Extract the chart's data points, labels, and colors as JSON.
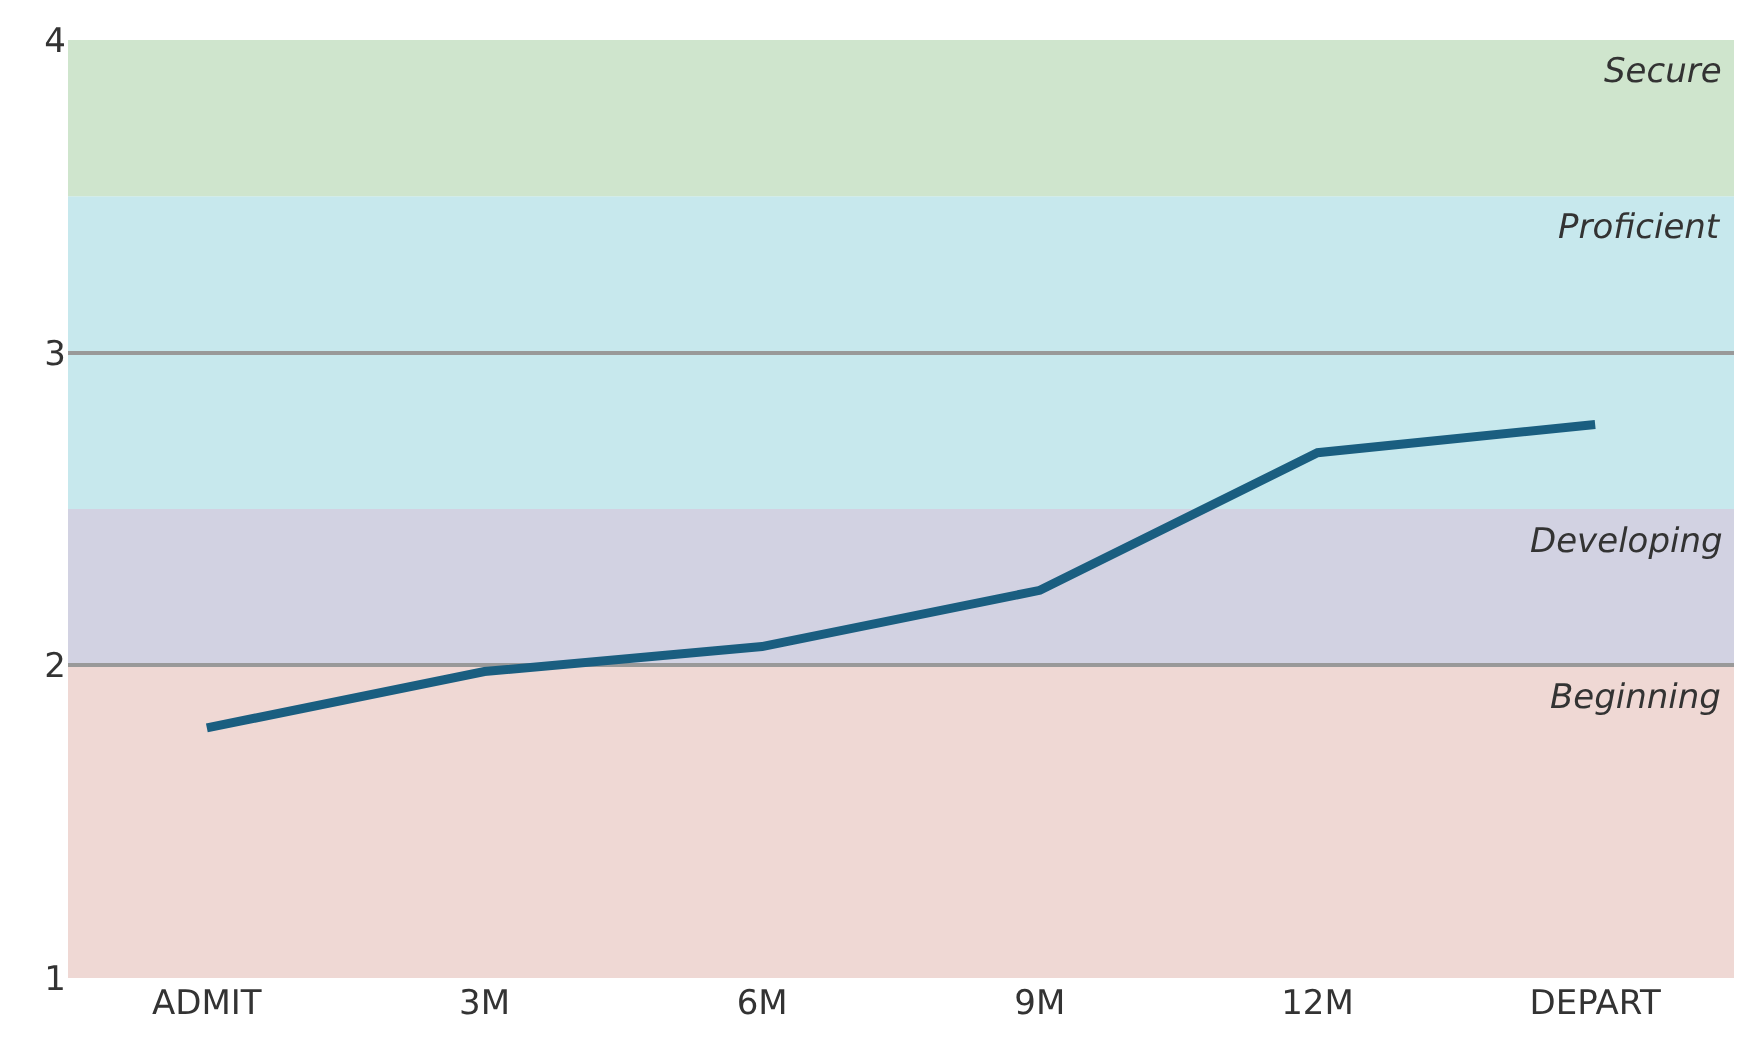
{
  "chart_data": {
    "type": "line",
    "categories": [
      "ADMIT",
      "3M",
      "6M",
      "9M",
      "12M",
      "DEPART"
    ],
    "series": [
      {
        "color": "#1a5e80",
        "values": [
          1.8,
          1.98,
          2.06,
          2.24,
          2.68,
          2.77
        ]
      }
    ],
    "ylim": [
      1,
      4
    ],
    "yticks": [
      1,
      2,
      3,
      4
    ],
    "grid": "y",
    "legend": false,
    "marker": "none",
    "line_style": "solid",
    "bands": [
      {
        "axis": "y",
        "from": 1,
        "to": 2,
        "label": "Beginning",
        "color": "#efd8d4"
      },
      {
        "axis": "y",
        "from": 2,
        "to": 2.5,
        "label": "Developing",
        "color": "#d2d2e2"
      },
      {
        "axis": "y",
        "from": 2.5,
        "to": 3.5,
        "label": "Proficient",
        "color": "#c7e8ed"
      },
      {
        "axis": "y",
        "from": 3.5,
        "to": 4,
        "label": "Secure",
        "color": "#cfe5cd"
      }
    ]
  }
}
